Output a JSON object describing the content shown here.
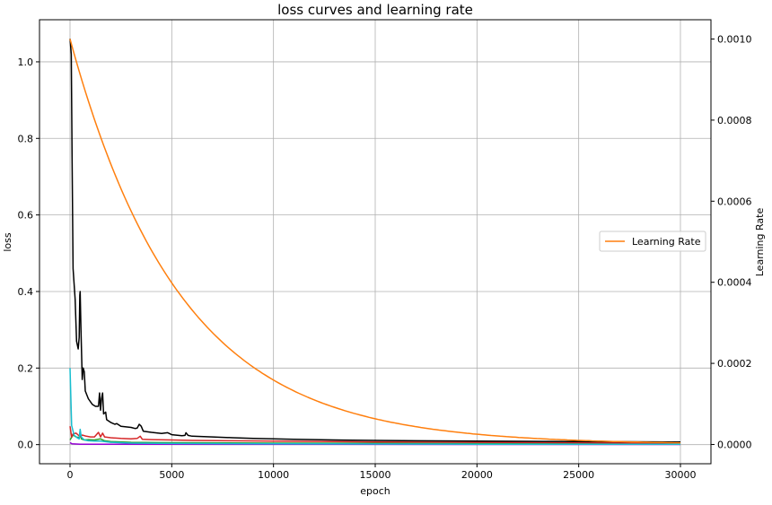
{
  "chart_data": {
    "type": "line",
    "title": "loss curves and learning rate",
    "xlabel": "epoch",
    "ylabel": "loss",
    "ylabel_right": "Learning Rate",
    "xlim": [
      -1500,
      31500
    ],
    "ylim": [
      -0.05,
      1.11
    ],
    "ylim_right": [
      -4.76e-05,
      0.0010476
    ],
    "x_ticks": [
      0,
      5000,
      10000,
      15000,
      20000,
      25000,
      30000
    ],
    "x_tick_labels": [
      "0",
      "5000",
      "10000",
      "15000",
      "20000",
      "25000",
      "30000"
    ],
    "y_ticks": [
      0.0,
      0.2,
      0.4,
      0.6,
      0.8,
      1.0
    ],
    "y_tick_labels": [
      "0.0",
      "0.2",
      "0.4",
      "0.6",
      "0.8",
      "1.0"
    ],
    "y_right_ticks": [
      0.0,
      0.0002,
      0.0004,
      0.0006,
      0.0008,
      0.001
    ],
    "y_right_tick_labels": [
      "0.0000",
      "0.0002",
      "0.0004",
      "0.0006",
      "0.0008",
      "0.0010"
    ],
    "grid": true,
    "legend_position": "center-right",
    "legend": [
      "Learning Rate"
    ],
    "series": [
      {
        "color": "#000000",
        "axis": "left",
        "points": [
          [
            0,
            1.06
          ],
          [
            60,
            1.02
          ],
          [
            100,
            0.75
          ],
          [
            150,
            0.46
          ],
          [
            250,
            0.38
          ],
          [
            320,
            0.27
          ],
          [
            400,
            0.25
          ],
          [
            450,
            0.28
          ],
          [
            480,
            0.39
          ],
          [
            500,
            0.4
          ],
          [
            540,
            0.3
          ],
          [
            600,
            0.17
          ],
          [
            650,
            0.2
          ],
          [
            700,
            0.19
          ],
          [
            750,
            0.14
          ],
          [
            900,
            0.12
          ],
          [
            1100,
            0.105
          ],
          [
            1250,
            0.1
          ],
          [
            1400,
            0.1
          ],
          [
            1450,
            0.135
          ],
          [
            1500,
            0.09
          ],
          [
            1550,
            0.12
          ],
          [
            1600,
            0.135
          ],
          [
            1650,
            0.08
          ],
          [
            1750,
            0.085
          ],
          [
            1800,
            0.065
          ],
          [
            2000,
            0.058
          ],
          [
            2200,
            0.053
          ],
          [
            2300,
            0.055
          ],
          [
            2500,
            0.048
          ],
          [
            3000,
            0.045
          ],
          [
            3200,
            0.042
          ],
          [
            3300,
            0.043
          ],
          [
            3400,
            0.053
          ],
          [
            3500,
            0.048
          ],
          [
            3600,
            0.035
          ],
          [
            4000,
            0.032
          ],
          [
            4500,
            0.029
          ],
          [
            4800,
            0.031
          ],
          [
            5000,
            0.026
          ],
          [
            5500,
            0.023
          ],
          [
            5650,
            0.024
          ],
          [
            5700,
            0.031
          ],
          [
            5800,
            0.024
          ],
          [
            6000,
            0.022
          ],
          [
            7000,
            0.02
          ],
          [
            8000,
            0.018
          ],
          [
            9000,
            0.016
          ],
          [
            10000,
            0.015
          ],
          [
            11000,
            0.014
          ],
          [
            12000,
            0.013
          ],
          [
            13000,
            0.012
          ],
          [
            15000,
            0.011
          ],
          [
            17000,
            0.01
          ],
          [
            20000,
            0.009
          ],
          [
            25000,
            0.008
          ],
          [
            30000,
            0.007
          ]
        ]
      },
      {
        "color": "#17becf",
        "axis": "left",
        "points": [
          [
            0,
            0.2
          ],
          [
            80,
            0.05
          ],
          [
            200,
            0.025
          ],
          [
            350,
            0.018
          ],
          [
            450,
            0.015
          ],
          [
            500,
            0.04
          ],
          [
            550,
            0.02
          ],
          [
            700,
            0.012
          ],
          [
            900,
            0.01
          ],
          [
            1200,
            0.009
          ],
          [
            1500,
            0.009
          ],
          [
            2000,
            0.006
          ],
          [
            3000,
            0.004
          ],
          [
            5000,
            0.003
          ],
          [
            10000,
            0.002
          ],
          [
            20000,
            0.001
          ],
          [
            30000,
            0.001
          ]
        ]
      },
      {
        "color": "#d62728",
        "axis": "left",
        "points": [
          [
            0,
            0.048
          ],
          [
            80,
            0.02
          ],
          [
            150,
            0.028
          ],
          [
            300,
            0.03
          ],
          [
            400,
            0.025
          ],
          [
            500,
            0.02
          ],
          [
            600,
            0.025
          ],
          [
            800,
            0.022
          ],
          [
            1000,
            0.02
          ],
          [
            1200,
            0.02
          ],
          [
            1400,
            0.032
          ],
          [
            1500,
            0.02
          ],
          [
            1600,
            0.03
          ],
          [
            1700,
            0.02
          ],
          [
            2000,
            0.018
          ],
          [
            2500,
            0.016
          ],
          [
            3000,
            0.015
          ],
          [
            3300,
            0.016
          ],
          [
            3450,
            0.022
          ],
          [
            3550,
            0.014
          ],
          [
            4000,
            0.013
          ],
          [
            5000,
            0.012
          ],
          [
            6000,
            0.011
          ],
          [
            8000,
            0.01
          ],
          [
            10000,
            0.009
          ],
          [
            15000,
            0.007
          ],
          [
            20000,
            0.006
          ],
          [
            25000,
            0.005
          ],
          [
            30000,
            0.004
          ]
        ]
      },
      {
        "color": "#2ca02c",
        "axis": "left",
        "points": [
          [
            0,
            0.012
          ],
          [
            150,
            0.025
          ],
          [
            300,
            0.02
          ],
          [
            450,
            0.018
          ],
          [
            500,
            0.035
          ],
          [
            550,
            0.015
          ],
          [
            700,
            0.012
          ],
          [
            900,
            0.013
          ],
          [
            1200,
            0.012
          ],
          [
            1500,
            0.015
          ],
          [
            1700,
            0.01
          ],
          [
            2000,
            0.008
          ],
          [
            3000,
            0.006
          ],
          [
            5000,
            0.005
          ],
          [
            10000,
            0.004
          ],
          [
            20000,
            0.003
          ],
          [
            30000,
            0.003
          ]
        ]
      },
      {
        "color": "#9400d3",
        "axis": "left",
        "points": [
          [
            0,
            0.005
          ],
          [
            100,
            0.002
          ],
          [
            500,
            0.001
          ],
          [
            2000,
            0.0008
          ],
          [
            10000,
            0.0006
          ],
          [
            30000,
            0.0005
          ]
        ]
      },
      {
        "name": "Learning Rate",
        "color": "#ff7f0e",
        "axis": "right",
        "decay": {
          "initial": 0.001,
          "rate_per_epoch": 0.000184,
          "x_start": 0,
          "x_end": 30000
        }
      }
    ]
  }
}
